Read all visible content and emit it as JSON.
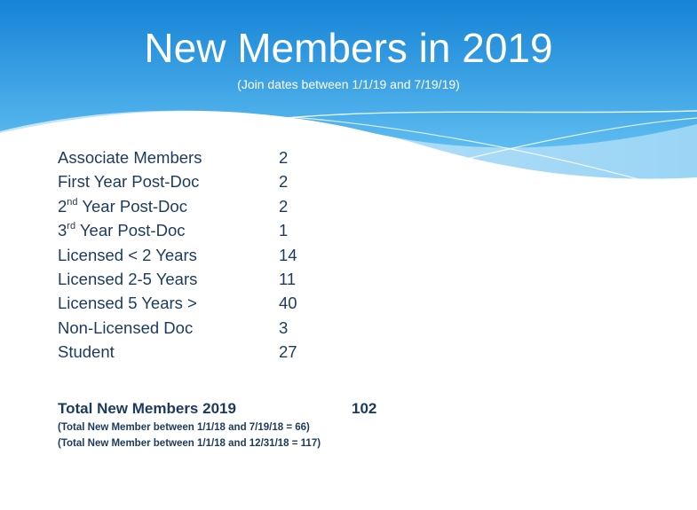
{
  "slide": {
    "title": "New Members in 2019",
    "subtitle": "(Join dates between 1/1/19 and 7/19/19)"
  },
  "categories": [
    {
      "label": "Associate Members",
      "value": "2"
    },
    {
      "label": "First Year Post-Doc",
      "value": "2"
    },
    {
      "label_num": "2",
      "label_sup": "nd",
      "label_rest": " Year Post-Doc",
      "value": "2"
    },
    {
      "label_num": "3",
      "label_sup": "rd",
      "label_rest": " Year Post-Doc",
      "value": "1"
    },
    {
      "label": "Licensed < 2 Years",
      "value": "14"
    },
    {
      "label": "Licensed 2-5 Years",
      "value": "11"
    },
    {
      "label": "Licensed 5 Years >",
      "value": "40"
    },
    {
      "label": "Non-Licensed Doc",
      "value": "3"
    },
    {
      "label": "Student",
      "value": "27"
    }
  ],
  "total": {
    "label": "Total New Members 2019",
    "value": "102",
    "notes": [
      "(Total New Member between 1/1/18 and 7/19/18 = 66)",
      "(Total New Member between 1/1/18 and 12/31/18 = 117)"
    ]
  },
  "colors": {
    "header_dark": "#1683d6",
    "header_light": "#6cc3f2",
    "text": "#1b3a5e"
  }
}
